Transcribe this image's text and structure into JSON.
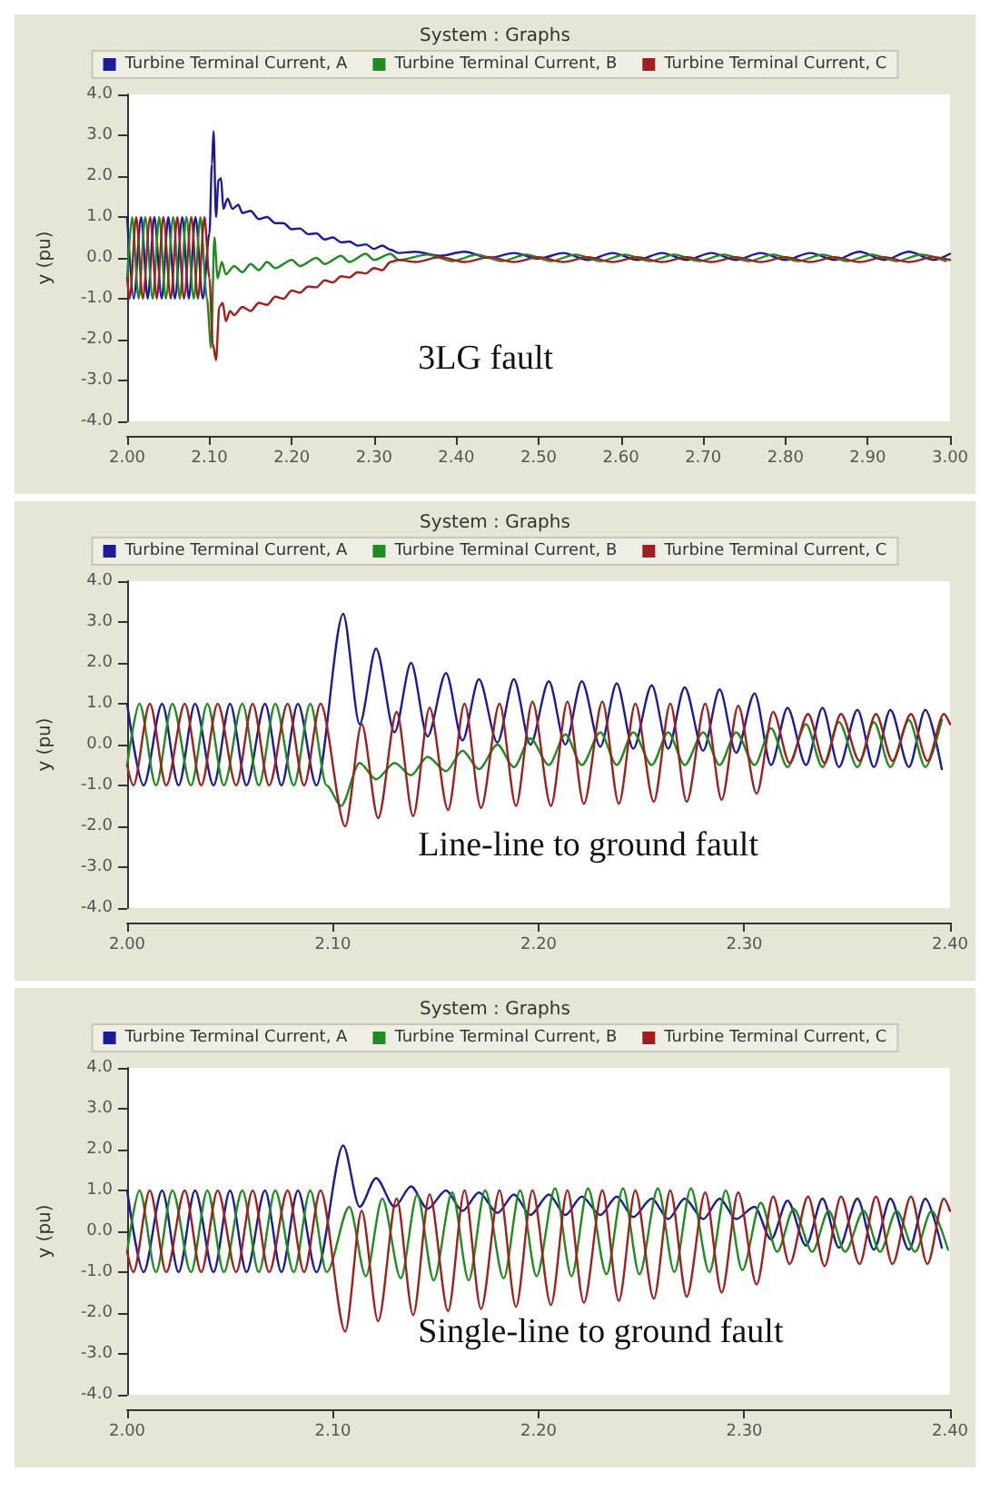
{
  "chart_data": [
    {
      "type": "line",
      "title": "System : Graphs",
      "ylabel": "y (pu)",
      "annotations": [
        "3LG fault"
      ],
      "xlim": [
        2,
        3
      ],
      "xticks": [
        {
          "value": 2,
          "label": "2.00"
        },
        {
          "value": 2.1,
          "label": "2.10"
        },
        {
          "value": 2.2,
          "label": "2.20"
        },
        {
          "value": 2.3,
          "label": "2.30"
        },
        {
          "value": 2.4,
          "label": "2.40"
        },
        {
          "value": 2.5,
          "label": "2.50"
        },
        {
          "value": 2.6,
          "label": "2.60"
        },
        {
          "value": 2.7,
          "label": "2.70"
        },
        {
          "value": 2.8,
          "label": "2.80"
        },
        {
          "value": 2.9,
          "label": "2.90"
        },
        {
          "value": 3,
          "label": "3.00"
        }
      ],
      "ylim": [
        -4,
        4
      ],
      "yticks": [
        {
          "value": -4,
          "label": "-4.0"
        },
        {
          "value": -3,
          "label": "-3.0"
        },
        {
          "value": -2,
          "label": "-2.0"
        },
        {
          "value": -1,
          "label": "-1.0"
        },
        {
          "value": 0,
          "label": "0.0"
        },
        {
          "value": 1,
          "label": "1.0"
        },
        {
          "value": 2,
          "label": "2.0"
        },
        {
          "value": 3,
          "label": "3.0"
        },
        {
          "value": 4,
          "label": "4.0"
        }
      ],
      "grid": false,
      "legend": "top",
      "marker": "none",
      "series": [
        {
          "name": "Turbine Terminal Current, A",
          "color": "#1c1c9a",
          "x": [
            2.0,
            2.008,
            2.017,
            2.025,
            2.033,
            2.042,
            2.05,
            2.058,
            2.067,
            2.075,
            2.083,
            2.092,
            2.1,
            2.103,
            2.105,
            2.108,
            2.111,
            2.114,
            2.117,
            2.122,
            2.128,
            2.135,
            2.14,
            2.15,
            2.16,
            2.17,
            2.18,
            2.19,
            2.2,
            2.21,
            2.22,
            2.23,
            2.24,
            2.25,
            2.26,
            2.27,
            2.28,
            2.29,
            2.3,
            2.31,
            2.32,
            2.33,
            2.35,
            2.38,
            2.41,
            2.44,
            2.47,
            2.5,
            2.53,
            2.56,
            2.59,
            2.62,
            2.65,
            2.68,
            2.71,
            2.74,
            2.77,
            2.8,
            2.83,
            2.86,
            2.89,
            2.92,
            2.95,
            2.98,
            3.0
          ],
          "values": [
            1,
            -1,
            1,
            -1,
            1,
            -1,
            1,
            -1,
            1,
            -1,
            1,
            -1,
            0.6,
            2.3,
            3.1,
            1.0,
            1.9,
            1.95,
            1.2,
            1.45,
            1.2,
            1.3,
            1.1,
            1.15,
            0.95,
            1.0,
            0.85,
            0.85,
            0.7,
            0.72,
            0.58,
            0.6,
            0.45,
            0.5,
            0.38,
            0.4,
            0.3,
            0.33,
            0.22,
            0.3,
            0.2,
            0.12,
            0.15,
            0.05,
            0.15,
            0.0,
            0.12,
            -0.02,
            0.12,
            -0.05,
            0.12,
            -0.05,
            0.12,
            -0.05,
            0.12,
            -0.05,
            0.12,
            -0.05,
            0.12,
            -0.05,
            0.15,
            -0.05,
            0.15,
            -0.05,
            0.1
          ]
        },
        {
          "name": "Turbine Terminal Current, B",
          "color": "#1e8c1e",
          "x": [
            2.0,
            2.006,
            2.014,
            2.022,
            2.031,
            2.039,
            2.047,
            2.056,
            2.064,
            2.072,
            2.081,
            2.089,
            2.097,
            2.102,
            2.106,
            2.11,
            2.115,
            2.12,
            2.13,
            2.14,
            2.15,
            2.16,
            2.17,
            2.18,
            2.2,
            2.21,
            2.23,
            2.24,
            2.26,
            2.27,
            2.29,
            2.3,
            2.32,
            2.33,
            2.365,
            2.395,
            2.425,
            2.455,
            2.485,
            2.515,
            2.545,
            2.575,
            2.605,
            2.635,
            2.665,
            2.695,
            2.725,
            2.755,
            2.785,
            2.815,
            2.845,
            2.875,
            2.905,
            2.935,
            2.965,
            2.995
          ],
          "values": [
            -0.5,
            1,
            -1,
            1,
            -1,
            1,
            -1,
            1,
            -1,
            1,
            -1,
            1,
            -1,
            -2.2,
            0.5,
            -0.5,
            -0.1,
            -0.4,
            -0.2,
            -0.35,
            -0.15,
            -0.3,
            -0.1,
            -0.25,
            -0.05,
            -0.2,
            0.0,
            -0.15,
            0.05,
            -0.1,
            0.1,
            -0.05,
            0.1,
            -0.05,
            0.08,
            -0.08,
            0.08,
            -0.08,
            0.08,
            -0.08,
            0.08,
            -0.08,
            0.08,
            -0.08,
            0.08,
            -0.08,
            0.08,
            -0.08,
            0.08,
            -0.08,
            0.08,
            -0.08,
            0.08,
            -0.08,
            0.08,
            -0.08
          ]
        },
        {
          "name": "Turbine Terminal Current, C",
          "color": "#a02020",
          "x": [
            2.0,
            2.003,
            2.011,
            2.019,
            2.028,
            2.036,
            2.044,
            2.053,
            2.061,
            2.069,
            2.078,
            2.086,
            2.094,
            2.1,
            2.104,
            2.108,
            2.112,
            2.116,
            2.12,
            2.125,
            2.13,
            2.14,
            2.15,
            2.16,
            2.17,
            2.18,
            2.19,
            2.2,
            2.21,
            2.22,
            2.23,
            2.24,
            2.25,
            2.26,
            2.27,
            2.28,
            2.29,
            2.3,
            2.31,
            2.32,
            2.33,
            2.35,
            2.38,
            2.41,
            2.44,
            2.47,
            2.5,
            2.53,
            2.56,
            2.59,
            2.62,
            2.65,
            2.68,
            2.71,
            2.74,
            2.77,
            2.8,
            2.83,
            2.86,
            2.89,
            2.92,
            2.95,
            2.98,
            3.0
          ],
          "values": [
            -0.5,
            -1,
            1,
            -1,
            1,
            -1,
            1,
            -1,
            1,
            -1,
            1,
            -1,
            1,
            -0.5,
            -2.1,
            -2.5,
            -1.2,
            -1.1,
            -1.55,
            -1.3,
            -1.4,
            -1.2,
            -1.3,
            -1.1,
            -1.15,
            -0.95,
            -1.0,
            -0.8,
            -0.85,
            -0.7,
            -0.72,
            -0.55,
            -0.6,
            -0.45,
            -0.48,
            -0.35,
            -0.38,
            -0.25,
            -0.3,
            -0.1,
            -0.05,
            -0.1,
            0.02,
            -0.1,
            0.02,
            -0.1,
            0.02,
            -0.1,
            0.02,
            -0.1,
            0.02,
            -0.1,
            0.02,
            -0.1,
            0.02,
            -0.1,
            0.02,
            -0.1,
            0.02,
            -0.1,
            0.02,
            -0.1,
            0.02,
            -0.05
          ]
        }
      ]
    },
    {
      "type": "line",
      "title": "System : Graphs",
      "ylabel": "y (pu)",
      "annotations": [
        "Line-line to ground fault"
      ],
      "xlim": [
        2,
        2.4
      ],
      "xticks": [
        {
          "value": 2,
          "label": "2.00"
        },
        {
          "value": 2.1,
          "label": "2.10"
        },
        {
          "value": 2.2,
          "label": "2.20"
        },
        {
          "value": 2.3,
          "label": "2.30"
        },
        {
          "value": 2.4,
          "label": "2.40"
        }
      ],
      "ylim": [
        -4,
        4
      ],
      "yticks": [
        {
          "value": -4,
          "label": "-4.0"
        },
        {
          "value": -3,
          "label": "-3.0"
        },
        {
          "value": -2,
          "label": "-2.0"
        },
        {
          "value": -1,
          "label": "-1.0"
        },
        {
          "value": 0,
          "label": "0.0"
        },
        {
          "value": 1,
          "label": "1.0"
        },
        {
          "value": 2,
          "label": "2.0"
        },
        {
          "value": 3,
          "label": "3.0"
        },
        {
          "value": 4,
          "label": "4.0"
        }
      ],
      "grid": false,
      "legend": "top",
      "marker": "none",
      "series": [
        {
          "name": "Turbine Terminal Current, A",
          "color": "#1c1c9a",
          "x": [
            2.0,
            2.008,
            2.017,
            2.025,
            2.033,
            2.042,
            2.05,
            2.058,
            2.067,
            2.075,
            2.083,
            2.092,
            2.105,
            2.113,
            2.121,
            2.13,
            2.138,
            2.146,
            2.155,
            2.163,
            2.171,
            2.18,
            2.188,
            2.196,
            2.205,
            2.213,
            2.221,
            2.23,
            2.238,
            2.246,
            2.255,
            2.263,
            2.271,
            2.28,
            2.288,
            2.296,
            2.305,
            2.313,
            2.321,
            2.33,
            2.338,
            2.346,
            2.355,
            2.363,
            2.371,
            2.38,
            2.388,
            2.396
          ],
          "values": [
            1,
            -1,
            1,
            -1,
            1,
            -1,
            1,
            -1,
            1,
            -1,
            1,
            -1,
            3.2,
            0.5,
            2.35,
            0.3,
            2.0,
            0.2,
            1.75,
            0.1,
            1.6,
            0.05,
            1.6,
            0.0,
            1.55,
            0.0,
            1.55,
            -0.05,
            1.5,
            -0.1,
            1.45,
            -0.1,
            1.4,
            -0.15,
            1.35,
            -0.2,
            1.25,
            -0.5,
            0.9,
            -0.5,
            0.9,
            -0.55,
            0.85,
            -0.55,
            0.85,
            -0.55,
            0.85,
            -0.6
          ]
        },
        {
          "name": "Turbine Terminal Current, B",
          "color": "#1e8c1e",
          "x": [
            2.0,
            2.006,
            2.014,
            2.022,
            2.031,
            2.039,
            2.047,
            2.056,
            2.064,
            2.072,
            2.081,
            2.089,
            2.097,
            2.104,
            2.113,
            2.121,
            2.13,
            2.138,
            2.146,
            2.155,
            2.163,
            2.171,
            2.18,
            2.188,
            2.196,
            2.205,
            2.213,
            2.221,
            2.23,
            2.238,
            2.246,
            2.255,
            2.263,
            2.271,
            2.28,
            2.288,
            2.296,
            2.305,
            2.313,
            2.321,
            2.33,
            2.338,
            2.346,
            2.355,
            2.363,
            2.371,
            2.38,
            2.388,
            2.396
          ],
          "values": [
            -0.5,
            1,
            -1,
            1,
            -1,
            1,
            -1,
            1,
            -1,
            1,
            -1,
            1,
            -1,
            -1.5,
            -0.45,
            -0.85,
            -0.45,
            -0.75,
            -0.3,
            -0.65,
            -0.15,
            -0.6,
            0.0,
            -0.55,
            0.15,
            -0.5,
            0.25,
            -0.5,
            0.3,
            -0.5,
            0.3,
            -0.5,
            0.3,
            -0.5,
            0.3,
            -0.5,
            0.3,
            -0.5,
            0.4,
            -0.55,
            0.5,
            -0.55,
            0.55,
            -0.55,
            0.55,
            -0.55,
            0.6,
            -0.55,
            0.6
          ]
        },
        {
          "name": "Turbine Terminal Current, C",
          "color": "#a02020",
          "x": [
            2.0,
            2.003,
            2.011,
            2.019,
            2.028,
            2.036,
            2.044,
            2.053,
            2.061,
            2.069,
            2.078,
            2.086,
            2.094,
            2.106,
            2.114,
            2.122,
            2.131,
            2.139,
            2.147,
            2.156,
            2.164,
            2.172,
            2.181,
            2.189,
            2.197,
            2.206,
            2.214,
            2.222,
            2.231,
            2.239,
            2.247,
            2.256,
            2.264,
            2.272,
            2.281,
            2.289,
            2.297,
            2.306,
            2.314,
            2.322,
            2.331,
            2.339,
            2.347,
            2.356,
            2.364,
            2.372,
            2.381,
            2.389,
            2.397,
            2.4
          ],
          "values": [
            -0.5,
            -1,
            1,
            -1,
            1,
            -1,
            1,
            -1,
            1,
            -1,
            1,
            -1,
            1,
            -2.0,
            0.5,
            -1.8,
            0.8,
            -1.75,
            0.9,
            -1.6,
            1.0,
            -1.55,
            1.0,
            -1.5,
            1.05,
            -1.5,
            1.05,
            -1.45,
            1.05,
            -1.45,
            1.0,
            -1.4,
            1.0,
            -1.4,
            1.0,
            -1.35,
            0.95,
            -1.2,
            0.8,
            -0.45,
            0.75,
            -0.45,
            0.75,
            -0.4,
            0.75,
            -0.4,
            0.75,
            -0.4,
            0.75,
            0.5
          ]
        }
      ]
    },
    {
      "type": "line",
      "title": "System : Graphs",
      "ylabel": "y (pu)",
      "annotations": [
        "Single-line to ground fault"
      ],
      "xlim": [
        2,
        2.4
      ],
      "xticks": [
        {
          "value": 2,
          "label": "2.00"
        },
        {
          "value": 2.1,
          "label": "2.10"
        },
        {
          "value": 2.2,
          "label": "2.20"
        },
        {
          "value": 2.3,
          "label": "2.30"
        },
        {
          "value": 2.4,
          "label": "2.40"
        }
      ],
      "ylim": [
        -4,
        4
      ],
      "yticks": [
        {
          "value": -4,
          "label": "-4.0"
        },
        {
          "value": -3,
          "label": "-3.0"
        },
        {
          "value": -2,
          "label": "-2.0"
        },
        {
          "value": -1,
          "label": "-1.0"
        },
        {
          "value": 0,
          "label": "0.0"
        },
        {
          "value": 1,
          "label": "1.0"
        },
        {
          "value": 2,
          "label": "2.0"
        },
        {
          "value": 3,
          "label": "3.0"
        },
        {
          "value": 4,
          "label": "4.0"
        }
      ],
      "grid": false,
      "legend": "top",
      "marker": "none",
      "series": [
        {
          "name": "Turbine Terminal Current, A",
          "color": "#1c1c9a",
          "x": [
            2.0,
            2.008,
            2.017,
            2.025,
            2.033,
            2.042,
            2.05,
            2.058,
            2.067,
            2.075,
            2.083,
            2.092,
            2.105,
            2.113,
            2.121,
            2.13,
            2.138,
            2.146,
            2.155,
            2.163,
            2.171,
            2.18,
            2.188,
            2.196,
            2.205,
            2.213,
            2.221,
            2.23,
            2.238,
            2.246,
            2.255,
            2.263,
            2.271,
            2.28,
            2.288,
            2.296,
            2.305,
            2.313,
            2.321,
            2.33,
            2.338,
            2.346,
            2.355,
            2.363,
            2.371,
            2.38,
            2.388,
            2.396
          ],
          "values": [
            1,
            -1,
            1,
            -1,
            1,
            -1,
            1,
            -1,
            1,
            -1,
            1,
            -1,
            2.1,
            0.6,
            1.3,
            0.6,
            1.1,
            0.55,
            1.0,
            0.5,
            0.95,
            0.45,
            0.9,
            0.4,
            0.9,
            0.4,
            0.85,
            0.4,
            0.85,
            0.35,
            0.8,
            0.3,
            0.8,
            0.3,
            0.8,
            0.3,
            0.6,
            -0.2,
            0.75,
            -0.35,
            0.8,
            -0.4,
            0.8,
            -0.45,
            0.8,
            -0.45,
            0.8,
            -0.4
          ]
        },
        {
          "name": "Turbine Terminal Current, B",
          "color": "#1e8c1e",
          "x": [
            2.0,
            2.006,
            2.014,
            2.022,
            2.031,
            2.039,
            2.047,
            2.056,
            2.064,
            2.072,
            2.081,
            2.089,
            2.097,
            2.108,
            2.116,
            2.124,
            2.133,
            2.141,
            2.149,
            2.158,
            2.166,
            2.174,
            2.183,
            2.191,
            2.199,
            2.208,
            2.216,
            2.224,
            2.233,
            2.241,
            2.249,
            2.258,
            2.266,
            2.274,
            2.283,
            2.291,
            2.299,
            2.308,
            2.316,
            2.324,
            2.333,
            2.341,
            2.349,
            2.358,
            2.366,
            2.374,
            2.383,
            2.391,
            2.399
          ],
          "values": [
            -0.5,
            1,
            -1,
            1,
            -1,
            1,
            -1,
            1,
            -1,
            1,
            -1,
            1,
            -1,
            0.6,
            -1.1,
            0.8,
            -1.15,
            0.9,
            -1.2,
            0.95,
            -1.2,
            1.0,
            -1.15,
            1.0,
            -1.1,
            1.05,
            -1.1,
            1.05,
            -1.05,
            1.05,
            -1.05,
            1.05,
            -1.0,
            1.05,
            -1.0,
            1.0,
            -0.95,
            0.7,
            -0.5,
            0.55,
            -0.5,
            0.5,
            -0.5,
            0.5,
            -0.5,
            0.5,
            -0.5,
            0.5,
            -0.45
          ]
        },
        {
          "name": "Turbine Terminal Current, C",
          "color": "#a02020",
          "x": [
            2.0,
            2.003,
            2.011,
            2.019,
            2.028,
            2.036,
            2.044,
            2.053,
            2.061,
            2.069,
            2.078,
            2.086,
            2.094,
            2.106,
            2.114,
            2.122,
            2.131,
            2.139,
            2.147,
            2.156,
            2.164,
            2.172,
            2.181,
            2.189,
            2.197,
            2.206,
            2.214,
            2.222,
            2.231,
            2.239,
            2.247,
            2.256,
            2.264,
            2.272,
            2.281,
            2.289,
            2.297,
            2.306,
            2.314,
            2.322,
            2.331,
            2.339,
            2.347,
            2.356,
            2.364,
            2.372,
            2.381,
            2.389,
            2.397,
            2.4
          ],
          "values": [
            -0.5,
            -1,
            1,
            -1,
            1,
            -1,
            1,
            -1,
            1,
            -1,
            1,
            -1,
            1,
            -2.45,
            0.5,
            -2.2,
            0.8,
            -2.05,
            0.9,
            -1.95,
            1.0,
            -1.9,
            1.0,
            -1.85,
            1.0,
            -1.8,
            1.0,
            -1.75,
            1.0,
            -1.7,
            1.0,
            -1.65,
            1.0,
            -1.6,
            0.95,
            -1.5,
            0.95,
            -1.3,
            0.85,
            -0.8,
            0.85,
            -0.85,
            0.85,
            -0.8,
            0.85,
            -0.8,
            0.85,
            -0.8,
            0.8,
            0.5
          ]
        }
      ]
    }
  ]
}
